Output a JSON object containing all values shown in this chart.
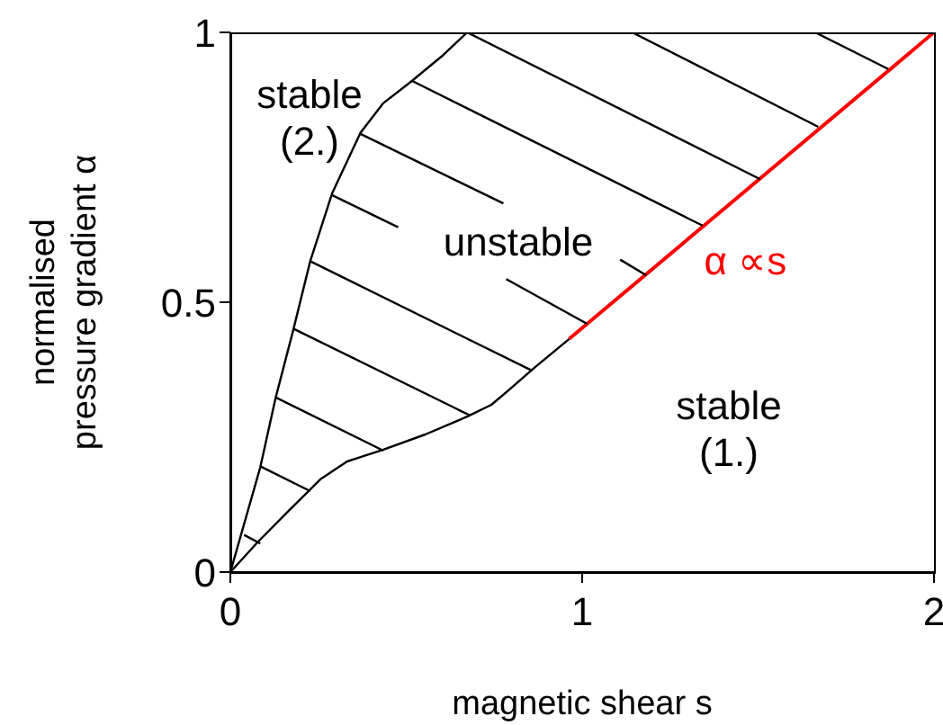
{
  "chart_data": {
    "type": "line",
    "xlabel": "magnetic shear s",
    "ylabel": "normalised\npressure gradient   α",
    "xlim": [
      0,
      2
    ],
    "ylim": [
      0,
      1
    ],
    "xticks": [
      0,
      1,
      2
    ],
    "yticks": [
      0,
      0.5,
      1
    ],
    "grid": false,
    "marker": "none",
    "line_style": "solid",
    "series": [
      {
        "color": "#000000",
        "x": [
          0,
          0.085,
          0.128,
          0.179,
          0.227,
          0.29,
          0.37,
          0.435,
          0.512,
          0.605,
          0.673
        ],
        "values": [
          0,
          0.194,
          0.321,
          0.449,
          0.576,
          0.703,
          0.814,
          0.869,
          0.908,
          0.958,
          1
        ]
      },
      {
        "color": "#000000",
        "x": [
          0,
          0.077,
          0.162,
          0.256,
          0.332,
          0.435,
          0.554,
          0.673,
          0.742,
          0.793,
          0.861,
          0.963
        ],
        "values": [
          0,
          0.055,
          0.111,
          0.172,
          0.205,
          0.227,
          0.255,
          0.288,
          0.31,
          0.338,
          0.377,
          0.432
        ]
      },
      {
        "name": "α ∝s",
        "color": "#ff0000",
        "x": [
          0.963,
          2
        ],
        "values": [
          0.432,
          1
        ]
      },
      {
        "color": "#000000",
        "x": [
          0.039,
          0.085
        ],
        "values": [
          0.069,
          0.053
        ]
      },
      {
        "color": "#000000",
        "x": [
          0.085,
          0.227
        ],
        "values": [
          0.196,
          0.15
        ]
      },
      {
        "color": "#000000",
        "x": [
          0.128,
          0.435
        ],
        "values": [
          0.324,
          0.225
        ]
      },
      {
        "color": "#000000",
        "x": [
          0.179,
          0.682
        ],
        "values": [
          0.451,
          0.29
        ]
      },
      {
        "color": "#000000",
        "x": [
          0.227,
          0.858
        ],
        "values": [
          0.576,
          0.373
        ]
      },
      {
        "color": "#000000",
        "x": [
          0.29,
          0.477
        ],
        "values": [
          0.698,
          0.639
        ]
      },
      {
        "color": "#000000",
        "x": [
          0.784,
          1.014
        ],
        "values": [
          0.543,
          0.46
        ]
      },
      {
        "color": "#000000",
        "x": [
          0.37,
          0.776
        ],
        "values": [
          0.812,
          0.683
        ]
      },
      {
        "color": "#000000",
        "x": [
          1.108,
          1.182
        ],
        "values": [
          0.579,
          0.55
        ]
      },
      {
        "color": "#000000",
        "x": [
          0.517,
          1.342
        ],
        "values": [
          0.91,
          0.642
        ]
      },
      {
        "color": "#000000",
        "x": [
          0.673,
          1.506
        ],
        "values": [
          1,
          0.728
        ]
      },
      {
        "color": "#000000",
        "x": [
          1.142,
          1.671
        ],
        "values": [
          1,
          0.825
        ]
      },
      {
        "color": "#000000",
        "x": [
          1.662,
          1.87
        ],
        "values": [
          1,
          0.932
        ]
      }
    ],
    "annotations": [
      "stable\n(2.)",
      "unstable",
      "stable\n(1.)"
    ]
  }
}
